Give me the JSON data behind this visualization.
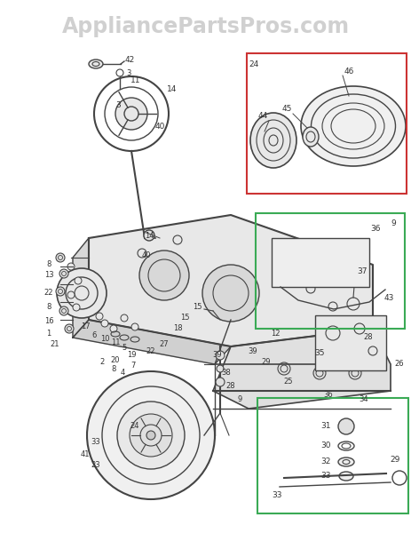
{
  "title": "AppliancePartsPros.com",
  "title_color": "#aaaaaa",
  "title_fontsize": 17,
  "bg_color": "#ffffff",
  "line_color": "#444444",
  "label_color": "#333333",
  "box_red": "#cc3333",
  "box_green": "#3aaa55",
  "box_light": "#dddddd"
}
